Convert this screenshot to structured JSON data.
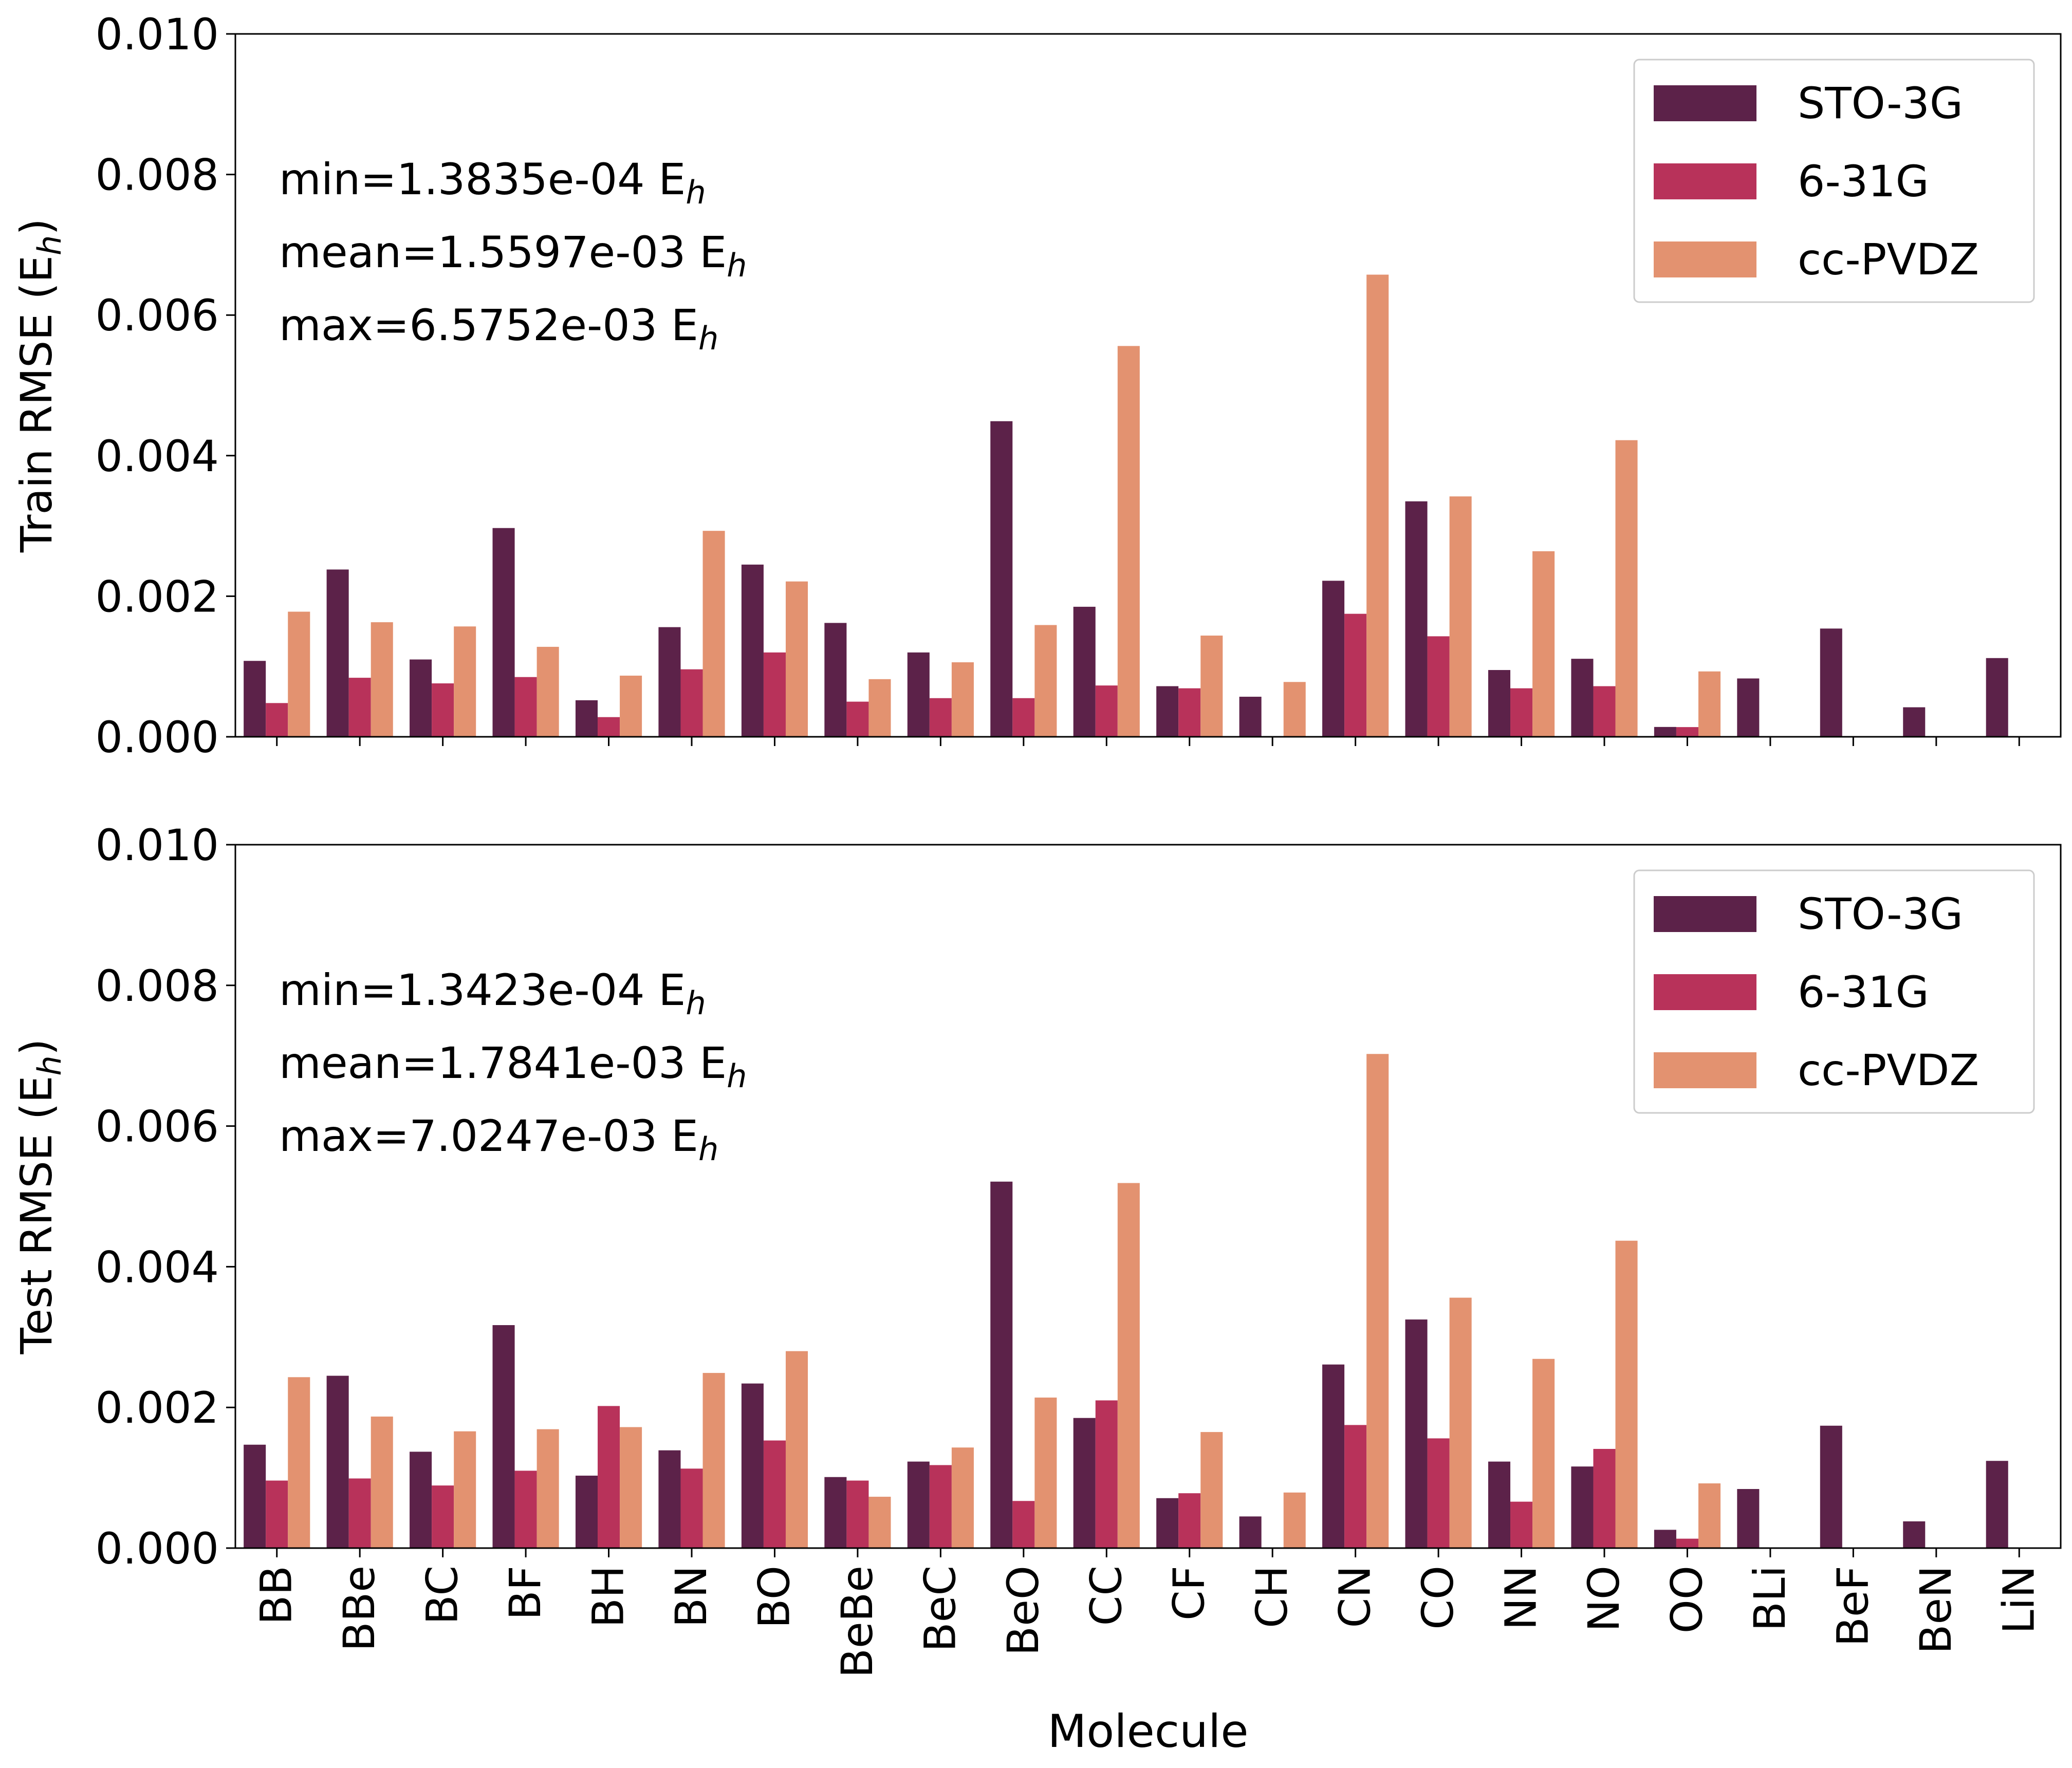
{
  "colors": {
    "STO-3G": "#5c2249",
    "6-31G": "#b8325a",
    "cc-PVDZ": "#e39270"
  },
  "xlabel": "Molecule",
  "chart_data": [
    {
      "type": "bar",
      "title": "",
      "ylabel_main": "Train RMSE (E",
      "ylabel_sub": "h",
      "ylabel_close": ")",
      "ylim": [
        0,
        0.01
      ],
      "yticks": [
        "0.000",
        "0.002",
        "0.004",
        "0.006",
        "0.008",
        "0.010"
      ],
      "legend_position": "top-right",
      "stats": [
        {
          "label": "min=1.3835e-04 E",
          "sub": "h"
        },
        {
          "label": "mean=1.5597e-03 E",
          "sub": "h"
        },
        {
          "label": "max=6.5752e-03 E",
          "sub": "h"
        }
      ],
      "categories": [
        "BB",
        "BBe",
        "BC",
        "BF",
        "BH",
        "BN",
        "BO",
        "BeBe",
        "BeC",
        "BeO",
        "CC",
        "CF",
        "CH",
        "CN",
        "CO",
        "NN",
        "NO",
        "OO",
        "BLi",
        "BeF",
        "BeN",
        "LiN"
      ],
      "series": [
        {
          "name": "STO-3G",
          "values": [
            0.00108,
            0.00238,
            0.0011,
            0.00297,
            0.00052,
            0.00156,
            0.00245,
            0.00162,
            0.0012,
            0.00449,
            0.00185,
            0.00072,
            0.00057,
            0.00222,
            0.00335,
            0.00095,
            0.00111,
            0.00014,
            0.00083,
            0.00154,
            0.00042,
            0.00112
          ]
        },
        {
          "name": "6-31G",
          "values": [
            0.00048,
            0.00084,
            0.00076,
            0.00085,
            0.00028,
            0.00096,
            0.0012,
            0.0005,
            0.00055,
            0.00055,
            0.00073,
            0.00069,
            null,
            0.00175,
            0.00143,
            0.00069,
            0.00072,
            0.000138,
            null,
            null,
            null,
            null
          ]
        },
        {
          "name": "cc-PVDZ",
          "values": [
            0.00178,
            0.00163,
            0.00157,
            0.00128,
            0.00087,
            0.00293,
            0.00221,
            0.00082,
            0.00106,
            0.00159,
            0.00556,
            0.00144,
            0.00078,
            0.006575,
            0.00342,
            0.00264,
            0.00422,
            0.00093,
            null,
            null,
            null,
            null
          ]
        }
      ]
    },
    {
      "type": "bar",
      "title": "",
      "ylabel_main": "Test RMSE (E",
      "ylabel_sub": "h",
      "ylabel_close": ")",
      "ylim": [
        0,
        0.01
      ],
      "yticks": [
        "0.000",
        "0.002",
        "0.004",
        "0.006",
        "0.008",
        "0.010"
      ],
      "legend_position": "top-right",
      "stats": [
        {
          "label": "min=1.3423e-04 E",
          "sub": "h"
        },
        {
          "label": "mean=1.7841e-03 E",
          "sub": "h"
        },
        {
          "label": "max=7.0247e-03 E",
          "sub": "h"
        }
      ],
      "categories": [
        "BB",
        "BBe",
        "BC",
        "BF",
        "BH",
        "BN",
        "BO",
        "BeBe",
        "BeC",
        "BeO",
        "CC",
        "CF",
        "CH",
        "CN",
        "CO",
        "NN",
        "NO",
        "OO",
        "BLi",
        "BeF",
        "BeN",
        "LiN"
      ],
      "series": [
        {
          "name": "STO-3G",
          "values": [
            0.00147,
            0.00245,
            0.00137,
            0.00317,
            0.00103,
            0.00139,
            0.00234,
            0.00101,
            0.00123,
            0.00521,
            0.00185,
            0.00071,
            0.00045,
            0.00261,
            0.00325,
            0.00123,
            0.00116,
            0.00026,
            0.00084,
            0.00174,
            0.00038,
            0.00124
          ]
        },
        {
          "name": "6-31G",
          "values": [
            0.00096,
            0.00099,
            0.00089,
            0.0011,
            0.00202,
            0.00113,
            0.00153,
            0.00096,
            0.00118,
            0.00067,
            0.0021,
            0.00078,
            null,
            0.00175,
            0.00156,
            0.00066,
            0.00141,
            0.000134,
            null,
            null,
            null,
            null
          ]
        },
        {
          "name": "cc-PVDZ",
          "values": [
            0.00243,
            0.00187,
            0.00166,
            0.00169,
            0.00172,
            0.00249,
            0.0028,
            0.00073,
            0.00143,
            0.00214,
            0.00519,
            0.00165,
            0.00079,
            0.007025,
            0.00356,
            0.00269,
            0.00437,
            0.00092,
            null,
            null,
            null,
            null
          ]
        }
      ]
    }
  ]
}
